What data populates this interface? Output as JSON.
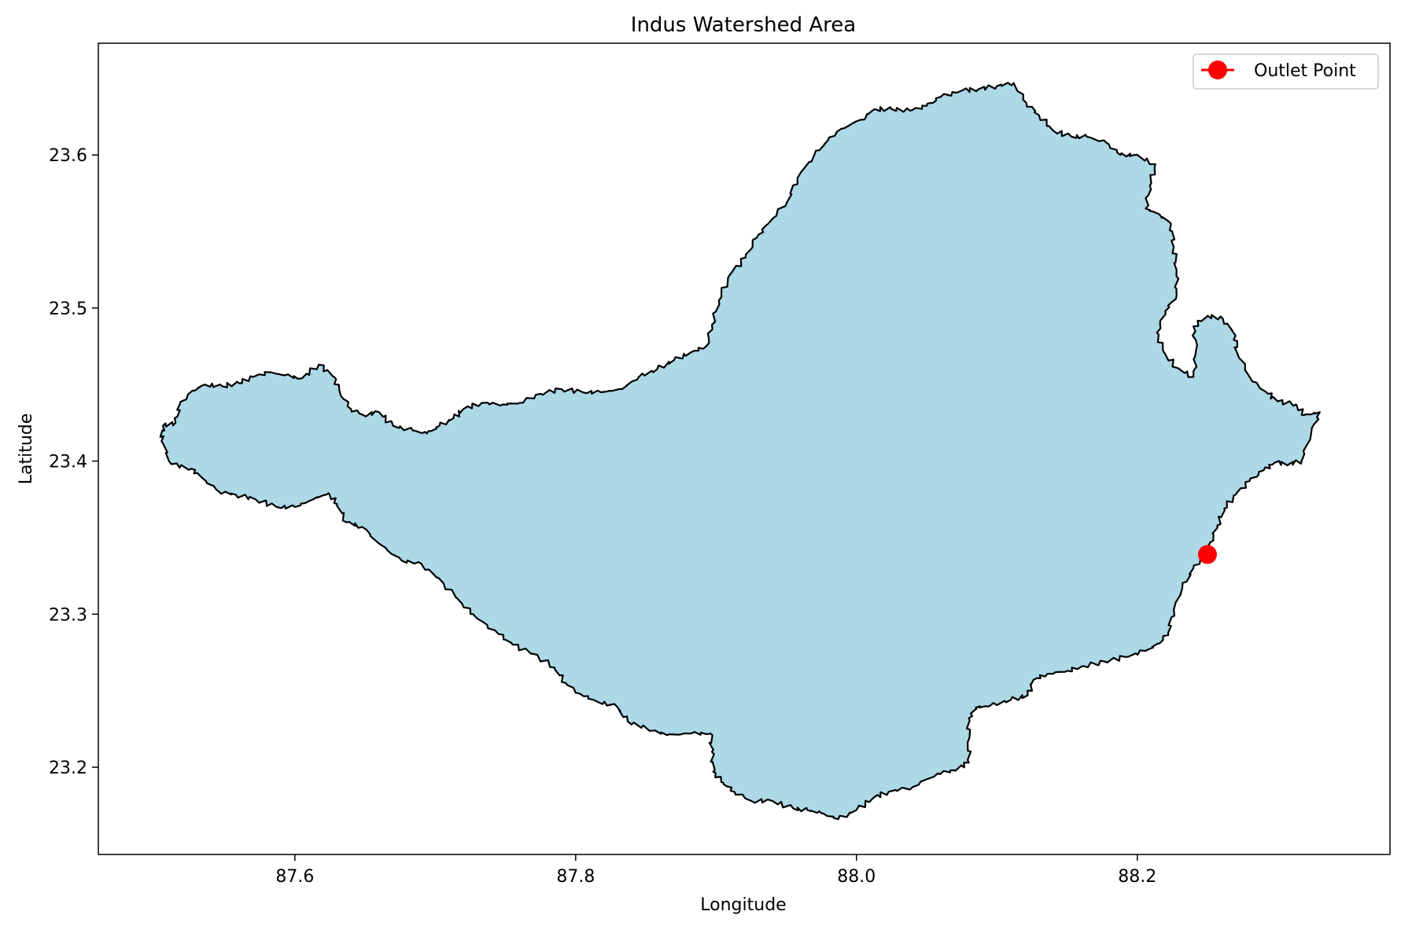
{
  "chart_data": {
    "type": "map",
    "title": "Indus Watershed Area",
    "xlabel": "Longitude",
    "ylabel": "Latitude",
    "xlim": [
      87.46,
      88.38
    ],
    "ylim": [
      23.143,
      23.673
    ],
    "xticks": [
      87.6,
      87.8,
      88.0,
      88.2
    ],
    "xtick_labels": [
      "87.6",
      "87.8",
      "88.0",
      "88.2"
    ],
    "yticks": [
      23.2,
      23.3,
      23.4,
      23.5,
      23.6
    ],
    "ytick_labels": [
      "23.2",
      "23.3",
      "23.4",
      "23.5",
      "23.6"
    ],
    "grid": false,
    "legend": {
      "placement": "top-right",
      "entries": [
        {
          "label": "Outlet Point",
          "color": "#ff0000",
          "marker": "circle"
        }
      ]
    },
    "watershed": {
      "fill_color": "#add8e6",
      "edge_color": "#000000",
      "boundary": [
        [
          87.505,
          23.413
        ],
        [
          87.506,
          23.423
        ],
        [
          87.515,
          23.425
        ],
        [
          87.518,
          23.437
        ],
        [
          87.527,
          23.446
        ],
        [
          87.536,
          23.45
        ],
        [
          87.548,
          23.449
        ],
        [
          87.56,
          23.451
        ],
        [
          87.57,
          23.455
        ],
        [
          87.582,
          23.458
        ],
        [
          87.593,
          23.456
        ],
        [
          87.605,
          23.454
        ],
        [
          87.617,
          23.463
        ],
        [
          87.628,
          23.455
        ],
        [
          87.632,
          23.445
        ],
        [
          87.64,
          23.434
        ],
        [
          87.649,
          23.43
        ],
        [
          87.66,
          23.432
        ],
        [
          87.67,
          23.423
        ],
        [
          87.684,
          23.42
        ],
        [
          87.694,
          23.418
        ],
        [
          87.703,
          23.423
        ],
        [
          87.713,
          23.428
        ],
        [
          87.72,
          23.434
        ],
        [
          87.733,
          23.438
        ],
        [
          87.748,
          23.437
        ],
        [
          87.76,
          23.438
        ],
        [
          87.775,
          23.444
        ],
        [
          87.79,
          23.447
        ],
        [
          87.805,
          23.445
        ],
        [
          87.818,
          23.445
        ],
        [
          87.833,
          23.447
        ],
        [
          87.845,
          23.455
        ],
        [
          87.858,
          23.46
        ],
        [
          87.87,
          23.466
        ],
        [
          87.882,
          23.471
        ],
        [
          87.893,
          23.475
        ],
        [
          87.897,
          23.489
        ],
        [
          87.902,
          23.505
        ],
        [
          87.91,
          23.522
        ],
        [
          87.921,
          23.533
        ],
        [
          87.929,
          23.546
        ],
        [
          87.937,
          23.555
        ],
        [
          87.951,
          23.57
        ],
        [
          87.958,
          23.585
        ],
        [
          87.97,
          23.6
        ],
        [
          87.98,
          23.61
        ],
        [
          87.989,
          23.617
        ],
        [
          88.003,
          23.623
        ],
        [
          88.013,
          23.63
        ],
        [
          88.025,
          23.63
        ],
        [
          88.038,
          23.629
        ],
        [
          88.05,
          23.632
        ],
        [
          88.06,
          23.638
        ],
        [
          88.075,
          23.642
        ],
        [
          88.087,
          23.643
        ],
        [
          88.1,
          23.645
        ],
        [
          88.112,
          23.647
        ],
        [
          88.121,
          23.634
        ],
        [
          88.13,
          23.626
        ],
        [
          88.14,
          23.616
        ],
        [
          88.153,
          23.612
        ],
        [
          88.164,
          23.612
        ],
        [
          88.178,
          23.608
        ],
        [
          88.188,
          23.6
        ],
        [
          88.198,
          23.6
        ],
        [
          88.213,
          23.594
        ],
        [
          88.209,
          23.58
        ],
        [
          88.206,
          23.565
        ],
        [
          88.216,
          23.561
        ],
        [
          88.224,
          23.555
        ],
        [
          88.226,
          23.54
        ],
        [
          88.228,
          23.525
        ],
        [
          88.228,
          23.508
        ],
        [
          88.22,
          23.498
        ],
        [
          88.214,
          23.484
        ],
        [
          88.219,
          23.471
        ],
        [
          88.228,
          23.461
        ],
        [
          88.24,
          23.455
        ],
        [
          88.242,
          23.473
        ],
        [
          88.24,
          23.488
        ],
        [
          88.25,
          23.495
        ],
        [
          88.261,
          23.493
        ],
        [
          88.27,
          23.482
        ],
        [
          88.271,
          23.471
        ],
        [
          88.282,
          23.452
        ],
        [
          88.293,
          23.444
        ],
        [
          88.3,
          23.439
        ],
        [
          88.313,
          23.437
        ],
        [
          88.319,
          23.43
        ],
        [
          88.33,
          23.432
        ],
        [
          88.324,
          23.419
        ],
        [
          88.317,
          23.4
        ],
        [
          88.308,
          23.398
        ],
        [
          88.298,
          23.399
        ],
        [
          88.29,
          23.394
        ],
        [
          88.28,
          23.387
        ],
        [
          88.27,
          23.378
        ],
        [
          88.262,
          23.369
        ],
        [
          88.257,
          23.358
        ],
        [
          88.252,
          23.347
        ],
        [
          88.248,
          23.338
        ],
        [
          88.24,
          23.33
        ],
        [
          88.232,
          23.317
        ],
        [
          88.226,
          23.303
        ],
        [
          88.222,
          23.288
        ],
        [
          88.216,
          23.281
        ],
        [
          88.206,
          23.276
        ],
        [
          88.192,
          23.272
        ],
        [
          88.177,
          23.269
        ],
        [
          88.162,
          23.266
        ],
        [
          88.15,
          23.263
        ],
        [
          88.136,
          23.261
        ],
        [
          88.126,
          23.257
        ],
        [
          88.122,
          23.247
        ],
        [
          88.11,
          23.244
        ],
        [
          88.095,
          23.24
        ],
        [
          88.085,
          23.239
        ],
        [
          88.08,
          23.232
        ],
        [
          88.08,
          23.218
        ],
        [
          88.08,
          23.203
        ],
        [
          88.07,
          23.198
        ],
        [
          88.058,
          23.196
        ],
        [
          88.04,
          23.187
        ],
        [
          88.023,
          23.184
        ],
        [
          88.012,
          23.18
        ],
        [
          88.0,
          23.172
        ],
        [
          87.987,
          23.166
        ],
        [
          87.975,
          23.17
        ],
        [
          87.965,
          23.172
        ],
        [
          87.955,
          23.173
        ],
        [
          87.94,
          23.178
        ],
        [
          87.925,
          23.178
        ],
        [
          87.913,
          23.184
        ],
        [
          87.905,
          23.19
        ],
        [
          87.898,
          23.197
        ],
        [
          87.897,
          23.21
        ],
        [
          87.896,
          23.222
        ],
        [
          87.882,
          23.222
        ],
        [
          87.865,
          23.221
        ],
        [
          87.851,
          23.225
        ],
        [
          87.837,
          23.23
        ],
        [
          87.829,
          23.24
        ],
        [
          87.815,
          23.243
        ],
        [
          87.803,
          23.248
        ],
        [
          87.793,
          23.255
        ],
        [
          87.785,
          23.265
        ],
        [
          87.77,
          23.274
        ],
        [
          87.755,
          23.28
        ],
        [
          87.745,
          23.287
        ],
        [
          87.73,
          23.297
        ],
        [
          87.719,
          23.307
        ],
        [
          87.706,
          23.32
        ],
        [
          87.69,
          23.333
        ],
        [
          87.676,
          23.335
        ],
        [
          87.66,
          23.346
        ],
        [
          87.648,
          23.357
        ],
        [
          87.637,
          23.36
        ],
        [
          87.63,
          23.372
        ],
        [
          87.624,
          23.379
        ],
        [
          87.613,
          23.375
        ],
        [
          87.6,
          23.37
        ],
        [
          87.587,
          23.37
        ],
        [
          87.572,
          23.375
        ],
        [
          87.558,
          23.378
        ],
        [
          87.546,
          23.38
        ],
        [
          87.534,
          23.389
        ],
        [
          87.526,
          23.395
        ],
        [
          87.512,
          23.398
        ],
        [
          87.505,
          23.413
        ]
      ]
    },
    "series": [
      {
        "name": "Outlet Point",
        "type": "scatter",
        "color": "#ff0000",
        "x": [
          88.25
        ],
        "y": [
          23.339
        ]
      }
    ]
  }
}
